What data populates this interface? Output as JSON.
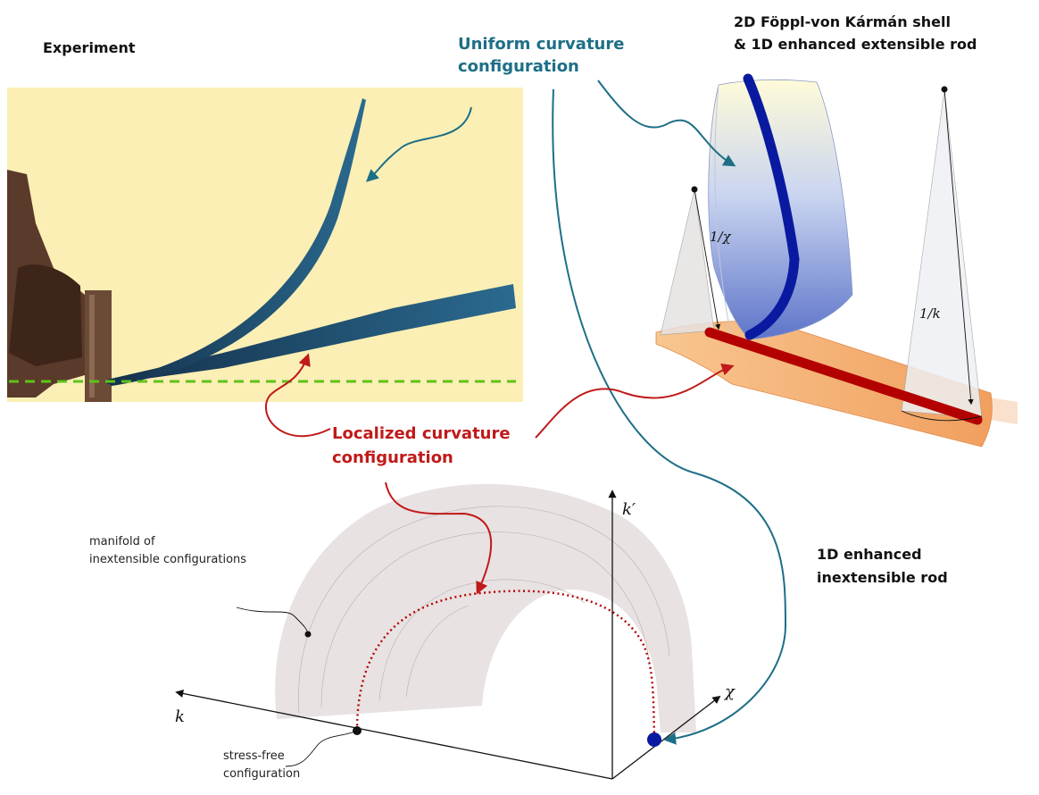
{
  "labels": {
    "experiment": "Experiment",
    "uniform_line1": "Uniform curvature",
    "uniform_line2": "configuration",
    "shell_line1": "2D Föppl-von Kármán shell",
    "shell_line2": "& 1D enhanced extensible rod",
    "localized_line1": "Localized curvature",
    "localized_line2": "configuration",
    "inextensible_line1": "1D enhanced",
    "inextensible_line2": "inextensible rod",
    "manifold_line1": "manifold of",
    "manifold_line2": "inextensible configurations",
    "stressfree_line1": "stress-free",
    "stressfree_line2": "configuration",
    "inv_chi": "1/χ",
    "inv_k": "1/k",
    "axis_k": "k",
    "axis_kprime": "k′",
    "axis_chi": "χ"
  },
  "colors": {
    "uniform": "#1d6f86",
    "localized": "#c01a1a",
    "rod_blue": "#0a1aa0",
    "rod_red": "#b30000",
    "photo_bg": "#fbefb5",
    "dash_green": "#5fc21a",
    "manifold_fill": "#e8e2e2",
    "plate_orange": "#f4b27a"
  }
}
